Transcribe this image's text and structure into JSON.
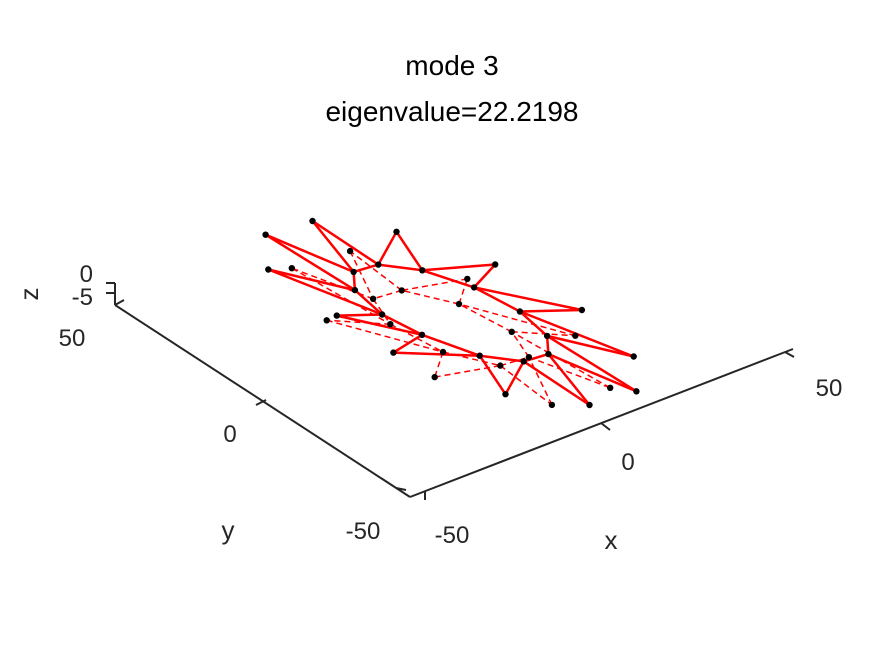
{
  "chart_data": {
    "type": "line3d",
    "title": "mode 3",
    "subtitle": "eigenvalue=22.2198",
    "xlabel": "x",
    "ylabel": "y",
    "zlabel": "z",
    "x_ticks": [
      "-50",
      "0",
      "50"
    ],
    "y_ticks": [
      "-50",
      "0",
      "50"
    ],
    "z_ticks": [
      "-5",
      "0"
    ],
    "xlim": [
      -60,
      60
    ],
    "ylim": [
      -60,
      60
    ],
    "zlim": [
      -8,
      0
    ],
    "grid": false,
    "colors": {
      "deformed": "#ff0000",
      "undeformed": "#ff0000",
      "nodes": "#000000",
      "axes": "#262626"
    },
    "series": [
      {
        "role": "deformed",
        "style": "solid",
        "nodes": [
          {
            "x": -26.4,
            "y": -15.2,
            "z": 0
          },
          {
            "x": -43.8,
            "y": -25.3,
            "z": 0
          },
          {
            "x": -16.5,
            "y": -24.4,
            "z": 0
          },
          {
            "x": -31.8,
            "y": -45.3,
            "z": 0
          },
          {
            "x": 0.0,
            "y": -30.5,
            "z": 0
          },
          {
            "x": 0.0,
            "y": -58.0,
            "z": 0
          },
          {
            "x": 15.2,
            "y": -26.4,
            "z": 0
          },
          {
            "x": 29.0,
            "y": -50.2,
            "z": 0
          },
          {
            "x": 26.4,
            "y": -15.2,
            "z": 0
          },
          {
            "x": 50.2,
            "y": -29.0,
            "z": 0
          },
          {
            "x": 30.5,
            "y": 0.0,
            "z": 0
          },
          {
            "x": 58.0,
            "y": 0.0,
            "z": 0
          },
          {
            "x": 26.4,
            "y": 15.2,
            "z": 0
          },
          {
            "x": 50.2,
            "y": 29.0,
            "z": 0
          },
          {
            "x": 15.2,
            "y": 26.4,
            "z": 0
          },
          {
            "x": 29.0,
            "y": 50.2,
            "z": 0
          },
          {
            "x": 0.0,
            "y": 30.5,
            "z": 0
          },
          {
            "x": 0.0,
            "y": 58.0,
            "z": 0
          },
          {
            "x": -15.2,
            "y": 26.4,
            "z": 0
          },
          {
            "x": -29.0,
            "y": 50.2,
            "z": 0
          },
          {
            "x": -26.4,
            "y": 15.2,
            "z": 0
          },
          {
            "x": -50.2,
            "y": 29.0,
            "z": 0
          },
          {
            "x": -30.5,
            "y": 0.0,
            "z": 0
          },
          {
            "x": -58.0,
            "y": 0.0,
            "z": 0
          }
        ]
      },
      {
        "role": "undeformed",
        "style": "dashed",
        "nodes": [
          {
            "x": -22.0,
            "y": -9.1,
            "z": -5
          },
          {
            "x": -45.0,
            "y": -18.6,
            "z": -5
          },
          {
            "x": -9.1,
            "y": -22.0,
            "z": -5
          },
          {
            "x": -18.6,
            "y": -45.0,
            "z": -5
          },
          {
            "x": 9.1,
            "y": -22.0,
            "z": -5
          },
          {
            "x": 18.6,
            "y": -45.0,
            "z": -5
          },
          {
            "x": 22.0,
            "y": -9.1,
            "z": -5
          },
          {
            "x": 45.0,
            "y": -18.6,
            "z": -5
          },
          {
            "x": 22.0,
            "y": 9.1,
            "z": -5
          },
          {
            "x": 45.0,
            "y": 18.6,
            "z": -5
          },
          {
            "x": 9.1,
            "y": 22.0,
            "z": -5
          },
          {
            "x": 18.6,
            "y": 45.0,
            "z": -5
          },
          {
            "x": -9.1,
            "y": 22.0,
            "z": -5
          },
          {
            "x": -18.6,
            "y": 45.0,
            "z": -5
          },
          {
            "x": -22.0,
            "y": 9.1,
            "z": -5
          },
          {
            "x": -45.0,
            "y": 18.6,
            "z": -5
          }
        ]
      }
    ]
  }
}
